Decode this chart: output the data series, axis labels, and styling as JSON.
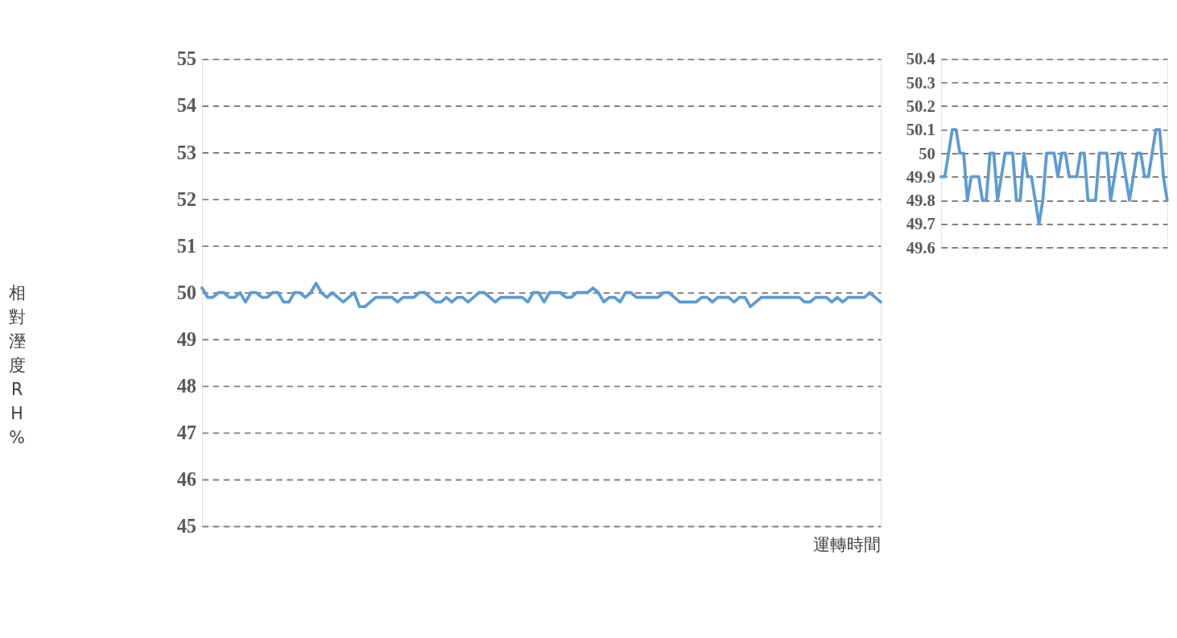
{
  "chart_data": [
    {
      "type": "line",
      "ylabel": "相對溼度RH%",
      "xlabel": "運轉時間",
      "categories": [
        null,
        null,
        null,
        null,
        null,
        null,
        null,
        null,
        null,
        null,
        null,
        null,
        null,
        null,
        null,
        null,
        null,
        null,
        null,
        null,
        null,
        null,
        null,
        null,
        null,
        null,
        null,
        null,
        null,
        null,
        null,
        null,
        null,
        null,
        null,
        null,
        null,
        null,
        null,
        null,
        null,
        null,
        null,
        null,
        null,
        null,
        null,
        null,
        null,
        null,
        null,
        null,
        null,
        null,
        null,
        null,
        null,
        null,
        null,
        null,
        null,
        null,
        null,
        null,
        null,
        null,
        null,
        null,
        null,
        null,
        null,
        null,
        null,
        null,
        null,
        null,
        null,
        null,
        null,
        null,
        null,
        null,
        null,
        null,
        null,
        null,
        null,
        null,
        null,
        null,
        null,
        null,
        null,
        null,
        null,
        null,
        null,
        null,
        null,
        null,
        null,
        null,
        null,
        null,
        null,
        null,
        null,
        null,
        null,
        null,
        null,
        null,
        null,
        null,
        null,
        null,
        null,
        null,
        null,
        null,
        null,
        null,
        null,
        null,
        null,
        null
      ],
      "series": [
        {
          "color": "#5b9bd5",
          "values": [
            50.1,
            49.9,
            49.9,
            50,
            50,
            49.9,
            49.9,
            50,
            49.8,
            50,
            50,
            49.9,
            49.9,
            50,
            50,
            49.8,
            49.8,
            50,
            50,
            49.9,
            50,
            50.2,
            50,
            49.9,
            50,
            49.9,
            49.8,
            49.9,
            50,
            49.7,
            49.7,
            49.8,
            49.9,
            49.9,
            49.9,
            49.9,
            49.8,
            49.9,
            49.9,
            49.9,
            50,
            50,
            49.9,
            49.8,
            49.8,
            49.9,
            49.8,
            49.9,
            49.9,
            49.8,
            49.9,
            50,
            50,
            49.9,
            49.8,
            49.9,
            49.9,
            49.9,
            49.9,
            49.9,
            49.8,
            50,
            50,
            49.8,
            50,
            50,
            50,
            49.9,
            49.9,
            50,
            50,
            50,
            50.1,
            50,
            49.8,
            49.9,
            49.9,
            49.8,
            50,
            50,
            49.9,
            49.9,
            49.9,
            49.9,
            49.9,
            50,
            50,
            49.9,
            49.8,
            49.8,
            49.8,
            49.8,
            49.9,
            49.9,
            49.8,
            49.9,
            49.9,
            49.9,
            49.8,
            49.9,
            49.9,
            49.7,
            49.8,
            49.9,
            49.9,
            49.9,
            49.9,
            49.9,
            49.9,
            49.9,
            49.9,
            49.8,
            49.8,
            49.9,
            49.9,
            49.9,
            49.8,
            49.9,
            49.8,
            49.9,
            49.9,
            49.9,
            49.9,
            50,
            49.9,
            49.8
          ]
        }
      ],
      "ylim": [
        45,
        55
      ],
      "yticks": [
        45,
        46,
        47,
        48,
        49,
        50,
        51,
        52,
        53,
        54,
        55
      ],
      "grid": "y",
      "line_style": "solid",
      "marker": "none"
    },
    {
      "type": "line",
      "categories": [
        null,
        null,
        null,
        null,
        null,
        null,
        null,
        null,
        null,
        null,
        null,
        null,
        null,
        null,
        null,
        null,
        null,
        null,
        null,
        null,
        null,
        null,
        null,
        null,
        null,
        null,
        null,
        null,
        null,
        null,
        null,
        null,
        null,
        null,
        null,
        null,
        null,
        null,
        null,
        null,
        null,
        null,
        null,
        null,
        null,
        null,
        null,
        null,
        null,
        null,
        null,
        null,
        null,
        null,
        null,
        null,
        null,
        null,
        null,
        null,
        null
      ],
      "series": [
        {
          "color": "#5b9bd5",
          "values": [
            49.9,
            49.9,
            50,
            50.1,
            50.1,
            50,
            50,
            49.8,
            49.9,
            49.9,
            49.9,
            49.8,
            49.8,
            50,
            50,
            49.8,
            49.9,
            50,
            50,
            50,
            49.8,
            49.8,
            50,
            49.9,
            49.9,
            49.8,
            49.7,
            49.8,
            50,
            50,
            50,
            49.9,
            50,
            50,
            49.9,
            49.9,
            49.9,
            50,
            50,
            49.8,
            49.8,
            49.8,
            50,
            50,
            50,
            49.8,
            49.9,
            50,
            50,
            49.9,
            49.8,
            49.9,
            50,
            50,
            49.9,
            49.9,
            50,
            50.1,
            50.1,
            49.9,
            49.8
          ]
        }
      ],
      "ylim": [
        49.6,
        50.4
      ],
      "yticks": [
        49.6,
        49.7,
        49.8,
        49.9,
        50,
        50.1,
        50.2,
        50.3,
        50.4
      ],
      "grid": "y",
      "line_style": "solid",
      "marker": "none"
    }
  ]
}
